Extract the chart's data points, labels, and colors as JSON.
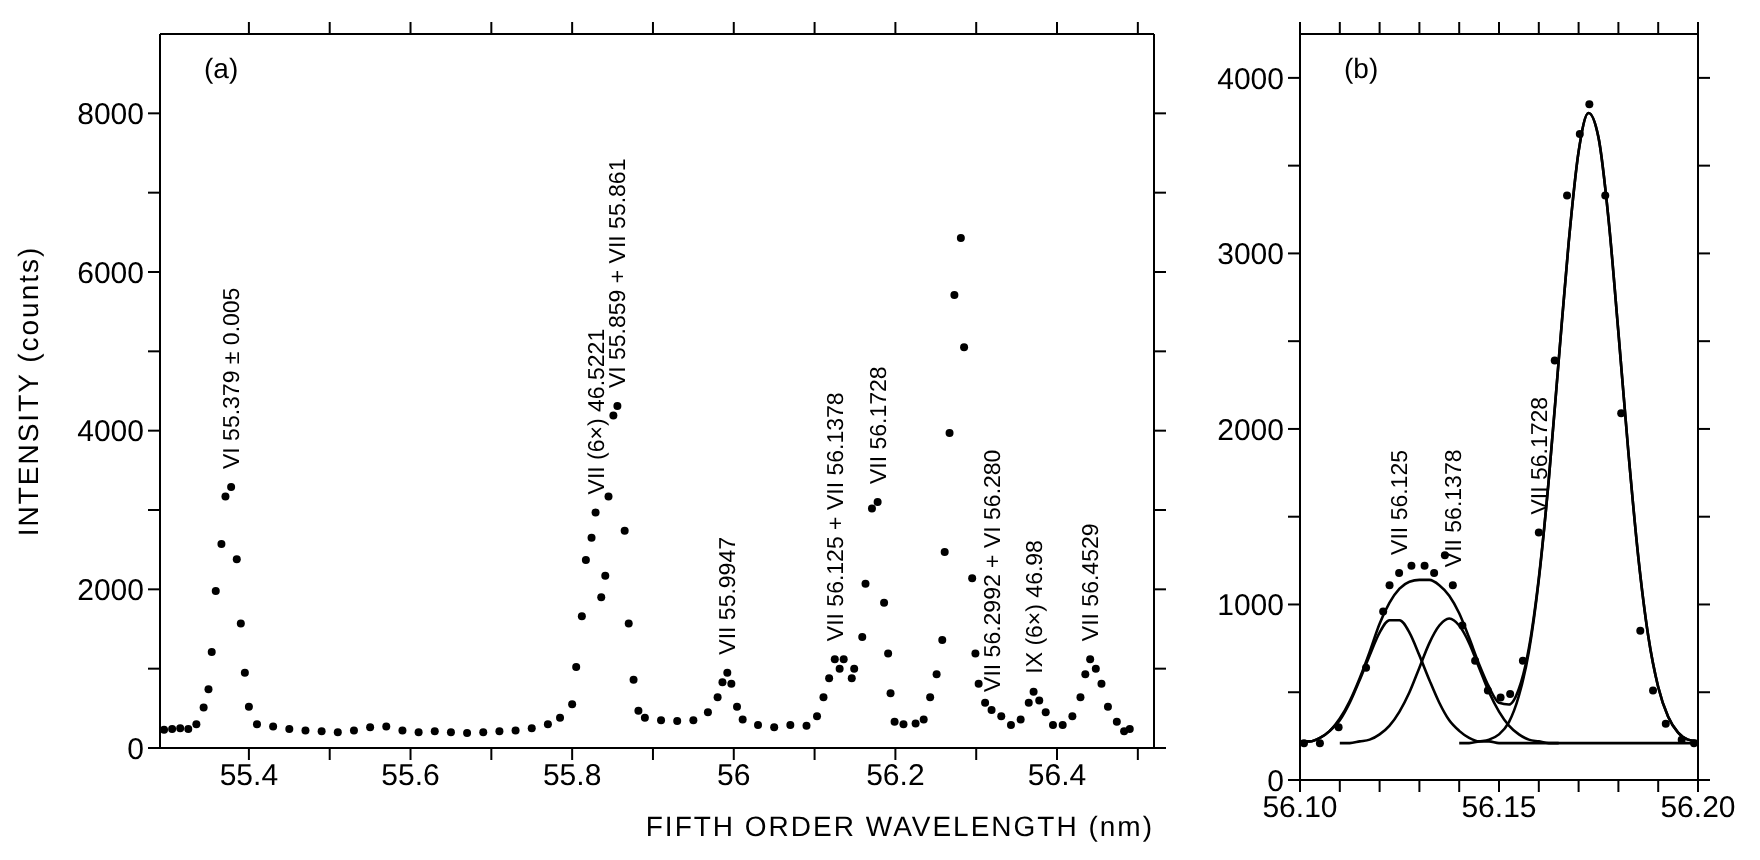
{
  "chart_data": [
    {
      "type": "scatter",
      "title": "(a)",
      "xlabel": "FIFTH ORDER WAVELENGTH (nm)",
      "ylabel": "INTENSITY (counts)",
      "marker": "circle",
      "xlim": [
        55.29,
        56.52
      ],
      "xticks": [
        55.4,
        {
          "value": 55.5,
          "label": null
        },
        55.6,
        {
          "value": 55.7,
          "label": null
        },
        55.8,
        {
          "value": 55.9,
          "label": null
        },
        56.0,
        {
          "value": 56.1,
          "label": null
        },
        56.2,
        {
          "value": 56.3,
          "label": null
        },
        56.4,
        {
          "value": 56.5,
          "label": null
        }
      ],
      "ylim": [
        0,
        9000
      ],
      "yticks": [
        0,
        {
          "value": 1000,
          "label": null
        },
        2000,
        {
          "value": 3000,
          "label": null
        },
        4000,
        {
          "value": 5000,
          "label": null
        },
        6000,
        {
          "value": 7000,
          "label": null
        },
        8000
      ],
      "series": [
        {
          "color": "#000000",
          "x": [
            55.295,
            55.305,
            55.315,
            55.325,
            55.335,
            55.344,
            55.35,
            55.354,
            55.359,
            55.366,
            55.371,
            55.378,
            55.385,
            55.39,
            55.395,
            55.4,
            55.41,
            55.43,
            55.45,
            55.47,
            55.49,
            55.51,
            55.53,
            55.55,
            55.57,
            55.59,
            55.61,
            55.63,
            55.65,
            55.67,
            55.69,
            55.71,
            55.73,
            55.75,
            55.77,
            55.785,
            55.8,
            55.805,
            55.812,
            55.817,
            55.824,
            55.829,
            55.836,
            55.841,
            55.845,
            55.851,
            55.856,
            55.865,
            55.87,
            55.876,
            55.882,
            55.89,
            55.91,
            55.93,
            55.95,
            55.968,
            55.98,
            55.986,
            55.992,
            55.997,
            56.004,
            56.011,
            56.03,
            56.05,
            56.07,
            56.09,
            56.103,
            56.111,
            56.118,
            56.125,
            56.131,
            56.136,
            56.146,
            56.149,
            56.159,
            56.163,
            56.171,
            56.178,
            56.186,
            56.191,
            56.194,
            56.199,
            56.21,
            56.225,
            56.235,
            56.243,
            56.251,
            56.258,
            56.261,
            56.267,
            56.273,
            56.281,
            56.285,
            56.295,
            56.299,
            56.303,
            56.311,
            56.319,
            56.331,
            56.343,
            56.355,
            56.365,
            56.371,
            56.378,
            56.386,
            56.395,
            56.407,
            56.419,
            56.429,
            56.435,
            56.441,
            56.448,
            56.455,
            56.463,
            56.474,
            56.483,
            56.49
          ],
          "values": [
            230,
            240,
            250,
            240,
            300,
            510,
            740,
            1210,
            1980,
            2570,
            3170,
            3290,
            2380,
            1570,
            950,
            520,
            300,
            270,
            240,
            220,
            210,
            200,
            220,
            260,
            270,
            220,
            200,
            210,
            200,
            190,
            200,
            210,
            220,
            250,
            300,
            380,
            550,
            1020,
            1660,
            2370,
            2650,
            2970,
            1900,
            2170,
            3170,
            4190,
            4310,
            2740,
            1570,
            860,
            470,
            380,
            350,
            340,
            350,
            450,
            640,
            830,
            950,
            810,
            520,
            360,
            290,
            260,
            290,
            280,
            400,
            640,
            880,
            1120,
            1000,
            1120,
            880,
            1000,
            1400,
            2070,
            3020,
            3100,
            1830,
            1190,
            690,
            330,
            300,
            310,
            360,
            640,
            930,
            1360,
            2470,
            3970,
            5710,
            6430,
            5050,
            2140,
            1190,
            810,
            570,
            480,
            400,
            290,
            360,
            570,
            710,
            600,
            450,
            290,
            290,
            400,
            640,
            930,
            1120,
            1000,
            810,
            520,
            330,
            210,
            240
          ]
        }
      ],
      "annotations": [
        {
          "text": "VI 55.379 ± 0.005",
          "x": 55.378,
          "y": 3290
        },
        {
          "text": "VII (6×) 46.5221",
          "x": 55.829,
          "y": 2970
        },
        {
          "text": "VI 55.859 + VII 55.861",
          "x": 55.856,
          "y": 4310
        },
        {
          "text": "VII 55.9947",
          "x": 55.992,
          "y": 950
        },
        {
          "text": "VII 56.125 + VII 56.1378",
          "x": 56.125,
          "y": 1120
        },
        {
          "text": "VII 56.1728",
          "x": 56.178,
          "y": 3100
        },
        {
          "text": "VII 56.2992 + VI 56.280",
          "x": 56.319,
          "y": 480
        },
        {
          "text": "IX (6×) 46.98",
          "x": 56.371,
          "y": 710
        },
        {
          "text": "VII 56.4529",
          "x": 56.441,
          "y": 1120
        }
      ]
    },
    {
      "type": "scatter",
      "title": "(b)",
      "marker": "circle",
      "xlim": [
        56.1,
        56.2
      ],
      "xticks": [
        {
          "value": 56.1,
          "label": "56.10"
        },
        {
          "value": 56.11,
          "label": null
        },
        {
          "value": 56.12,
          "label": null
        },
        {
          "value": 56.13,
          "label": null
        },
        {
          "value": 56.14,
          "label": null
        },
        {
          "value": 56.15,
          "label": "56.15"
        },
        {
          "value": 56.16,
          "label": null
        },
        {
          "value": 56.17,
          "label": null
        },
        {
          "value": 56.18,
          "label": null
        },
        {
          "value": 56.19,
          "label": null
        },
        {
          "value": 56.2,
          "label": "56.20"
        }
      ],
      "ylim": [
        0,
        4250
      ],
      "yticks": [
        0,
        {
          "value": 500,
          "label": null
        },
        1000,
        {
          "value": 1500,
          "label": null
        },
        2000,
        {
          "value": 2500,
          "label": null
        },
        3000,
        {
          "value": 3500,
          "label": null
        },
        4000
      ],
      "series": [
        {
          "color": "#000000",
          "x": [
            56.101,
            56.105,
            56.1097,
            56.1166,
            56.1209,
            56.1225,
            56.1249,
            56.128,
            56.1313,
            56.1337,
            56.1364,
            56.1384,
            56.1408,
            56.144,
            56.1472,
            56.1504,
            56.1528,
            56.156,
            56.16,
            56.164,
            56.1671,
            56.1703,
            56.1727,
            56.1767,
            56.1807,
            56.1855,
            56.1887,
            56.1919,
            56.1959,
            56.199
          ],
          "values": [
            210,
            210,
            300,
            640,
            960,
            1110,
            1180,
            1220,
            1220,
            1180,
            1280,
            1110,
            880,
            680,
            510,
            470,
            490,
            680,
            1410,
            2390,
            3330,
            3680,
            3850,
            3330,
            2090,
            850,
            510,
            320,
            230,
            210
          ]
        },
        {
          "type": "line",
          "marker": "none",
          "color": "#000000",
          "x": [
            56.1,
            56.1025,
            56.105,
            56.1075,
            56.11,
            56.1125,
            56.115,
            56.1175,
            56.12,
            56.1225,
            56.125,
            56.1275,
            56.13,
            56.1325,
            56.135,
            56.1375,
            56.14,
            56.1425,
            56.145,
            56.1475,
            56.15,
            56.1525,
            56.155,
            56.1575,
            56.16,
            56.1625,
            56.165,
            56.1675,
            56.17,
            56.1725,
            56.175,
            56.1775,
            56.18,
            56.1825,
            56.185,
            56.1875,
            56.19,
            56.1925,
            56.195,
            56.1975,
            56.2
          ],
          "values": [
            220,
            220,
            240,
            280,
            340,
            440,
            570,
            710,
            840,
            910,
            910,
            840,
            710,
            570,
            440,
            340,
            280,
            240,
            220,
            220,
            210,
            210,
            210,
            210,
            210,
            210,
            210,
            210,
            210,
            210,
            210,
            210,
            210,
            210,
            210,
            210,
            210,
            210,
            210,
            210,
            210
          ]
        },
        {
          "type": "line",
          "marker": "none",
          "color": "#000000",
          "x": [
            56.11,
            56.1125,
            56.115,
            56.1175,
            56.12,
            56.1225,
            56.125,
            56.1275,
            56.13,
            56.1325,
            56.135,
            56.1375,
            56.14,
            56.1425,
            56.145,
            56.1475,
            56.15,
            56.1525,
            56.155,
            56.1575,
            56.16,
            56.1625,
            56.165
          ],
          "values": [
            210,
            210,
            220,
            230,
            260,
            310,
            390,
            500,
            640,
            780,
            880,
            920,
            880,
            780,
            640,
            500,
            390,
            310,
            260,
            230,
            220,
            210,
            210
          ]
        },
        {
          "type": "line",
          "marker": "none",
          "color": "#000000",
          "x": [
            56.14,
            56.1425,
            56.145,
            56.1475,
            56.15,
            56.1525,
            56.155,
            56.1575,
            56.16,
            56.1625,
            56.165,
            56.1675,
            56.17,
            56.1725,
            56.175,
            56.1775,
            56.18,
            56.1825,
            56.185,
            56.1875,
            56.19,
            56.1925,
            56.195,
            56.1975,
            56.2
          ],
          "values": [
            210,
            210,
            220,
            230,
            260,
            330,
            480,
            730,
            1140,
            1710,
            2390,
            3060,
            3580,
            3800,
            3660,
            3200,
            2550,
            1870,
            1270,
            820,
            530,
            360,
            270,
            230,
            220
          ]
        },
        {
          "type": "line",
          "marker": "none",
          "color": "#000000",
          "x": [
            56.1,
            56.1025,
            56.105,
            56.1075,
            56.11,
            56.1125,
            56.115,
            56.1175,
            56.12,
            56.1225,
            56.125,
            56.1275,
            56.13,
            56.1325,
            56.135,
            56.1375,
            56.14,
            56.1425,
            56.145,
            56.1475,
            56.15,
            56.1525,
            56.155,
            56.1575,
            56.16,
            56.1625,
            56.165,
            56.1675,
            56.17,
            56.1725,
            56.175,
            56.1775,
            56.18,
            56.1825,
            56.185,
            56.1875,
            56.19,
            56.1925,
            56.195,
            56.1975,
            56.2
          ],
          "values": [
            220,
            220,
            240,
            280,
            350,
            450,
            580,
            730,
            890,
            1010,
            1090,
            1130,
            1140,
            1140,
            1110,
            1050,
            950,
            810,
            660,
            530,
            440,
            430,
            520,
            750,
            1150,
            1710,
            2390,
            3060,
            3580,
            3800,
            3660,
            3200,
            2550,
            1870,
            1270,
            820,
            530,
            360,
            270,
            230,
            220
          ]
        }
      ],
      "annotations": [
        {
          "text": "VII 56.125",
          "x": 56.1249,
          "y": 1180
        },
        {
          "text": "VII 56.1378",
          "x": 56.1384,
          "y": 1110
        },
        {
          "text": "VII 56.1728",
          "x": 56.16,
          "y": 1410
        }
      ]
    }
  ]
}
